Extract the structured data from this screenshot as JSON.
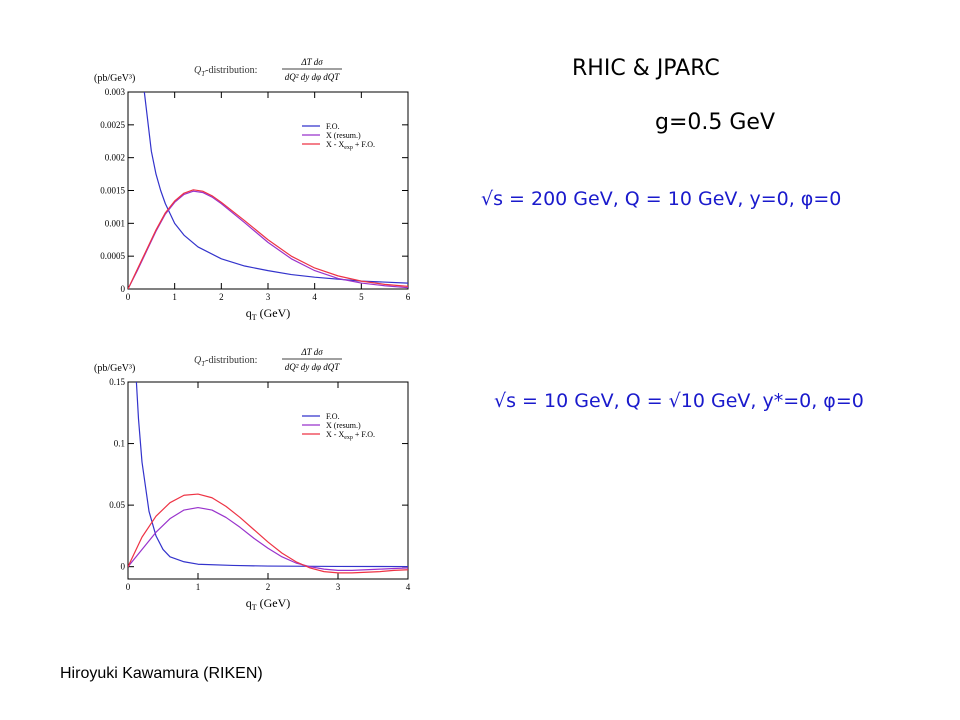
{
  "slide": {
    "title": "RHIC & JPARC",
    "param": "g=0.5 GeV",
    "conditions_1": "√s = 200 GeV,  Q = 10 GeV,  y=0, φ=0",
    "conditions_2": "√s = 10 GeV,  Q = √10 GeV,  y*=0, φ=0",
    "author": "Hiroyuki Kawamura (RIKEN)"
  },
  "chart_data": [
    {
      "type": "line",
      "ylabel": "(pb/GeV³)",
      "title_prefix": "Q",
      "title_text": "-distribution:",
      "title_numerator": "ΔT dσ",
      "title_denominator": "dQ² dy dφ dQT",
      "xlabel": "q",
      "xlabel_unit": "(GeV)",
      "xlim": [
        0,
        6
      ],
      "ylim": [
        0,
        0.003
      ],
      "xticks": [
        0,
        1,
        2,
        3,
        4,
        5,
        6
      ],
      "yticks": [
        0,
        0.0005,
        0.001,
        0.0015,
        0.002,
        0.0025,
        0.003
      ],
      "ytick_labels": [
        "0",
        "0.0005",
        "0.001",
        "0.0015",
        "0.002",
        "0.0025",
        "0.003"
      ],
      "legend_position": "upper-right",
      "series": [
        {
          "name": "F.O.",
          "color": "#3333cc",
          "x": [
            0.35,
            0.4,
            0.5,
            0.6,
            0.7,
            0.8,
            1.0,
            1.2,
            1.5,
            2.0,
            2.5,
            3.0,
            3.5,
            4.0,
            5.0,
            6.0
          ],
          "y": [
            0.003,
            0.0027,
            0.0021,
            0.00175,
            0.0015,
            0.0013,
            0.001,
            0.00082,
            0.00064,
            0.00046,
            0.00035,
            0.00028,
            0.00022,
            0.00018,
            0.00012,
            9e-05
          ]
        },
        {
          "name": "X (resum.)",
          "color": "#9933cc",
          "x": [
            0,
            0.2,
            0.4,
            0.6,
            0.8,
            1.0,
            1.2,
            1.4,
            1.6,
            1.8,
            2.0,
            2.5,
            3.0,
            3.5,
            4.0,
            4.5,
            5.0,
            5.5,
            6.0
          ],
          "y": [
            0,
            0.00028,
            0.00058,
            0.00088,
            0.00114,
            0.00132,
            0.00144,
            0.00149,
            0.00147,
            0.0014,
            0.0013,
            0.00101,
            0.00071,
            0.00046,
            0.00028,
            0.00016,
            9e-05,
            5e-05,
            2e-05
          ]
        },
        {
          "name": "X - X",
          "name_sub": "exp",
          "name_suffix": " + F.O.",
          "color": "#ee3344",
          "x": [
            0,
            0.2,
            0.4,
            0.6,
            0.8,
            1.0,
            1.2,
            1.4,
            1.6,
            1.8,
            2.0,
            2.5,
            3.0,
            3.5,
            4.0,
            4.5,
            5.0,
            5.5,
            6.0
          ],
          "y": [
            0,
            0.0003,
            0.0006,
            0.0009,
            0.00116,
            0.00134,
            0.00146,
            0.00151,
            0.00149,
            0.00142,
            0.00132,
            0.00104,
            0.00075,
            0.0005,
            0.00032,
            0.0002,
            0.00012,
            7e-05,
            4e-05
          ]
        }
      ]
    },
    {
      "type": "line",
      "ylabel": "(pb/GeV³)",
      "title_prefix": "Q",
      "title_text": "-distribution:",
      "title_numerator": "ΔT dσ",
      "title_denominator": "dQ² dy dφ dQT",
      "xlabel": "q",
      "xlabel_unit": "(GeV)",
      "xlim": [
        0,
        4
      ],
      "ylim": [
        -0.01,
        0.15
      ],
      "xticks": [
        0,
        1,
        2,
        3,
        4
      ],
      "yticks": [
        0,
        0.05,
        0.1,
        0.15
      ],
      "ytick_labels": [
        "0",
        "0.05",
        "0.1",
        "0.15"
      ],
      "legend_position": "upper-right",
      "series": [
        {
          "name": "F.O.",
          "color": "#3333cc",
          "x": [
            0.12,
            0.15,
            0.2,
            0.3,
            0.4,
            0.5,
            0.6,
            0.8,
            1.0,
            1.5,
            2.0,
            3.0,
            4.0
          ],
          "y": [
            0.15,
            0.12,
            0.085,
            0.045,
            0.025,
            0.014,
            0.008,
            0.004,
            0.002,
            0.001,
            0.0005,
            0.0002,
            0.0001
          ]
        },
        {
          "name": "X (resum.)",
          "color": "#9933cc",
          "x": [
            0,
            0.2,
            0.4,
            0.6,
            0.8,
            1.0,
            1.2,
            1.4,
            1.6,
            1.8,
            2.0,
            2.2,
            2.4,
            2.6,
            2.8,
            3.0,
            3.2,
            3.4,
            3.6,
            3.8,
            4.0
          ],
          "y": [
            0,
            0.014,
            0.028,
            0.039,
            0.046,
            0.048,
            0.046,
            0.04,
            0.032,
            0.023,
            0.015,
            0.008,
            0.003,
            0.0,
            -0.002,
            -0.003,
            -0.003,
            -0.0025,
            -0.002,
            -0.0015,
            -0.001
          ]
        },
        {
          "name": "X - X",
          "name_sub": "exp",
          "name_suffix": " + F.O.",
          "color": "#ee3344",
          "x": [
            0,
            0.2,
            0.4,
            0.6,
            0.8,
            1.0,
            1.2,
            1.4,
            1.6,
            1.8,
            2.0,
            2.2,
            2.4,
            2.6,
            2.8,
            3.0,
            3.2,
            3.4,
            3.6,
            3.8,
            4.0
          ],
          "y": [
            0,
            0.024,
            0.041,
            0.052,
            0.058,
            0.059,
            0.056,
            0.049,
            0.04,
            0.03,
            0.02,
            0.011,
            0.004,
            -0.001,
            -0.004,
            -0.005,
            -0.005,
            -0.0045,
            -0.004,
            -0.003,
            -0.0025
          ]
        }
      ]
    }
  ]
}
